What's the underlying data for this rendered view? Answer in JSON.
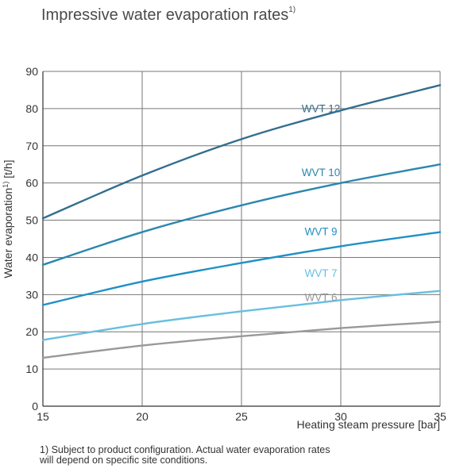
{
  "page_title": {
    "main": "Impressive water evaporation rates",
    "superscript": "1)"
  },
  "footnote": {
    "line1": "1) Subject to product configuration. Actual water evaporation rates",
    "line2": "will depend on specific site conditions."
  },
  "colors": {
    "grid": "#777777",
    "axis": "#333333",
    "tick_text": "#333333"
  },
  "chart_data": {
    "type": "line",
    "title": "Impressive water evaporation rates",
    "xlabel": "Heating steam pressure [bar]",
    "ylabel": "Water evaporation",
    "ylabel_superscript": "1)",
    "ylabel_unit": " [t/h]",
    "xlim": [
      15,
      35
    ],
    "ylim": [
      0,
      90
    ],
    "x_ticks": [
      15,
      20,
      25,
      30,
      35
    ],
    "y_ticks": [
      0,
      10,
      20,
      30,
      40,
      50,
      60,
      70,
      80,
      90
    ],
    "grid": true,
    "legend": "inline labels",
    "series": [
      {
        "name": "WVT 12",
        "color": "#336e8f",
        "label_at": [
          29,
          79
        ],
        "x": [
          15,
          20,
          25,
          30,
          35
        ],
        "values": [
          50.5,
          62,
          71.8,
          79.5,
          86.3
        ]
      },
      {
        "name": "WVT 10",
        "color": "#2b87b0",
        "label_at": [
          29,
          61.8
        ],
        "x": [
          15,
          20,
          25,
          30,
          35
        ],
        "values": [
          38,
          46.8,
          54,
          60,
          65
        ]
      },
      {
        "name": "WVT 9",
        "color": "#1f90c6",
        "label_at": [
          29,
          46
        ],
        "x": [
          15,
          20,
          25,
          30,
          35
        ],
        "values": [
          27.2,
          33.5,
          38.5,
          43,
          46.8
        ]
      },
      {
        "name": "WVT 7",
        "color": "#68bfe0",
        "label_at": [
          29,
          34.8
        ],
        "x": [
          15,
          20,
          25,
          30,
          35
        ],
        "values": [
          17.8,
          22.1,
          25.5,
          28.5,
          31
        ]
      },
      {
        "name": "WVT 6",
        "color": "#999999",
        "label_at": [
          29,
          28.3
        ],
        "x": [
          15,
          20,
          25,
          30,
          35
        ],
        "values": [
          13,
          16.3,
          18.8,
          21,
          22.7
        ]
      }
    ]
  }
}
